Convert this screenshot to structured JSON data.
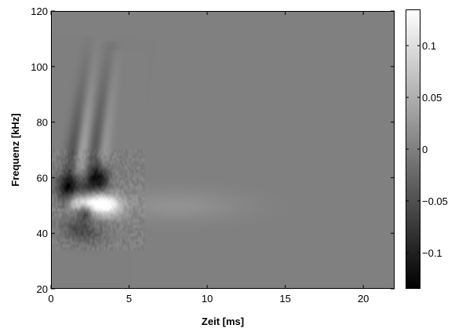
{
  "chart_data": {
    "type": "heatmap",
    "title": "",
    "xlabel": "Zeit [ms]",
    "ylabel": "Frequenz [kHz]",
    "xlim": [
      0,
      22
    ],
    "ylim": [
      20,
      120
    ],
    "x_ticks": [
      "0",
      "5",
      "10",
      "15",
      "20"
    ],
    "x_tick_values": [
      0,
      5,
      10,
      15,
      20
    ],
    "y_ticks": [
      "20",
      "40",
      "60",
      "80",
      "100",
      "120"
    ],
    "y_tick_values": [
      20,
      40,
      60,
      80,
      100,
      120
    ],
    "colorbar": {
      "range": [
        -0.135,
        0.135
      ],
      "ticks": [
        "0.1",
        "0.05",
        "0",
        "−0.05",
        "−0.1"
      ],
      "tick_values": [
        0.1,
        0.05,
        0,
        -0.05,
        -0.1
      ],
      "colormap": "gray"
    },
    "background_value": 0,
    "features": [
      {
        "kind": "stripe",
        "x0": 0.9,
        "y0": 52,
        "x1": 2.6,
        "y1": 108,
        "value": -0.05,
        "width_ms": 0.35
      },
      {
        "kind": "stripe",
        "x0": 1.6,
        "y0": 52,
        "x1": 2.8,
        "y1": 108,
        "value": 0.05,
        "width_ms": 0.3
      },
      {
        "kind": "stripe",
        "x0": 2.5,
        "y0": 55,
        "x1": 3.8,
        "y1": 106,
        "value": -0.05,
        "width_ms": 0.35
      },
      {
        "kind": "stripe",
        "x0": 3.0,
        "y0": 55,
        "x1": 4.1,
        "y1": 104,
        "value": 0.04,
        "width_ms": 0.3
      },
      {
        "kind": "blob",
        "x": 1.4,
        "y": 56.5,
        "sx": 0.7,
        "sy": 3.5,
        "value": -0.11
      },
      {
        "kind": "blob",
        "x": 3.1,
        "y": 59.5,
        "sx": 0.4,
        "sy": 3.5,
        "value": -0.13
      },
      {
        "kind": "blob",
        "x": 2.5,
        "y": 51.5,
        "sx": 1.0,
        "sy": 2.2,
        "value": 0.12
      },
      {
        "kind": "blob",
        "x": 3.5,
        "y": 49.5,
        "sx": 0.7,
        "sy": 2.5,
        "value": 0.1
      },
      {
        "kind": "blob",
        "x": 2.2,
        "y": 47.5,
        "sx": 0.3,
        "sy": 2.0,
        "value": -0.07
      },
      {
        "kind": "blob",
        "x": 1.5,
        "y": 42.0,
        "sx": 0.6,
        "sy": 3.0,
        "value": -0.04
      },
      {
        "kind": "blob",
        "x": 2.5,
        "y": 40.0,
        "sx": 0.7,
        "sy": 3.0,
        "value": -0.035
      },
      {
        "kind": "blob",
        "x": 8.0,
        "y": 50.0,
        "sx": 3.0,
        "sy": 4.0,
        "value": 0.02
      }
    ]
  }
}
